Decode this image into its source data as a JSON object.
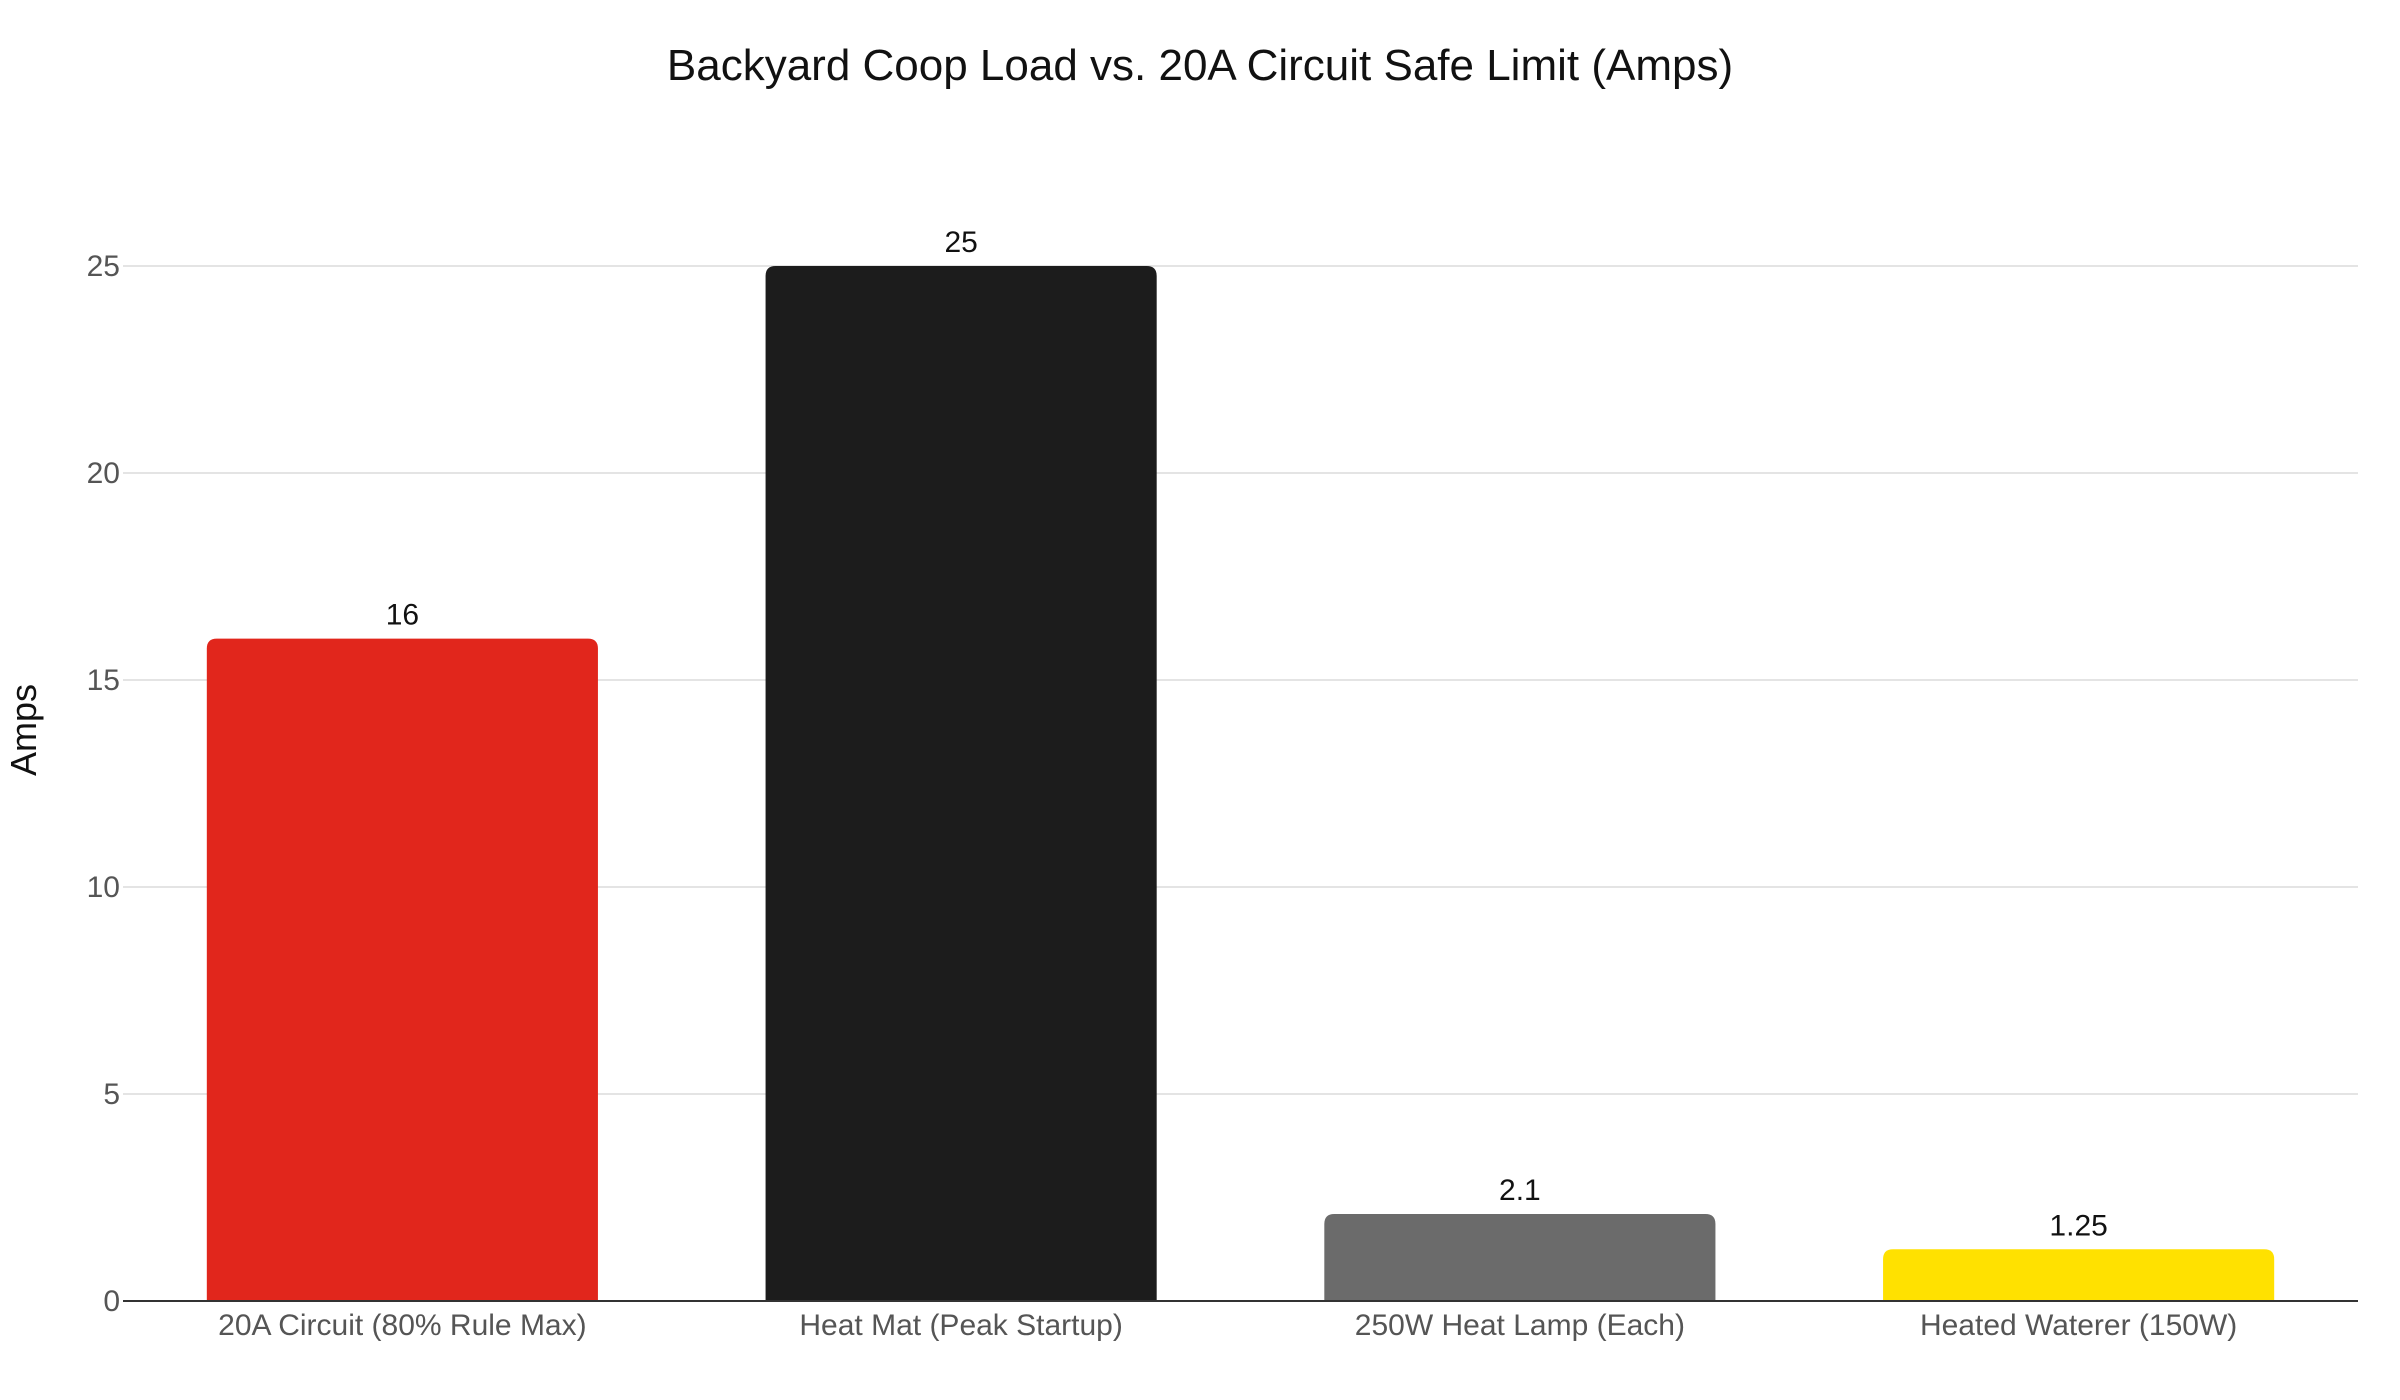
{
  "chart_data": {
    "type": "bar",
    "title": "Backyard Coop Load vs. 20A Circuit Safe Limit (Amps)",
    "xlabel": "",
    "ylabel": "Amps",
    "categories": [
      "20A Circuit (80% Rule Max)",
      "Heat Mat (Peak Startup)",
      "250W Heat Lamp (Each)",
      "Heated Waterer (150W)"
    ],
    "values": [
      16,
      25,
      2.1,
      1.25
    ],
    "value_labels": [
      "16",
      "25",
      "2.1",
      "1.25"
    ],
    "colors": [
      "#e1261c",
      "#1c1c1c",
      "#6b6b6b",
      "#ffe100"
    ],
    "ylim": [
      0,
      25
    ],
    "yticks": [
      0,
      5,
      10,
      15,
      20,
      25
    ],
    "grid": true,
    "legend": "none"
  }
}
